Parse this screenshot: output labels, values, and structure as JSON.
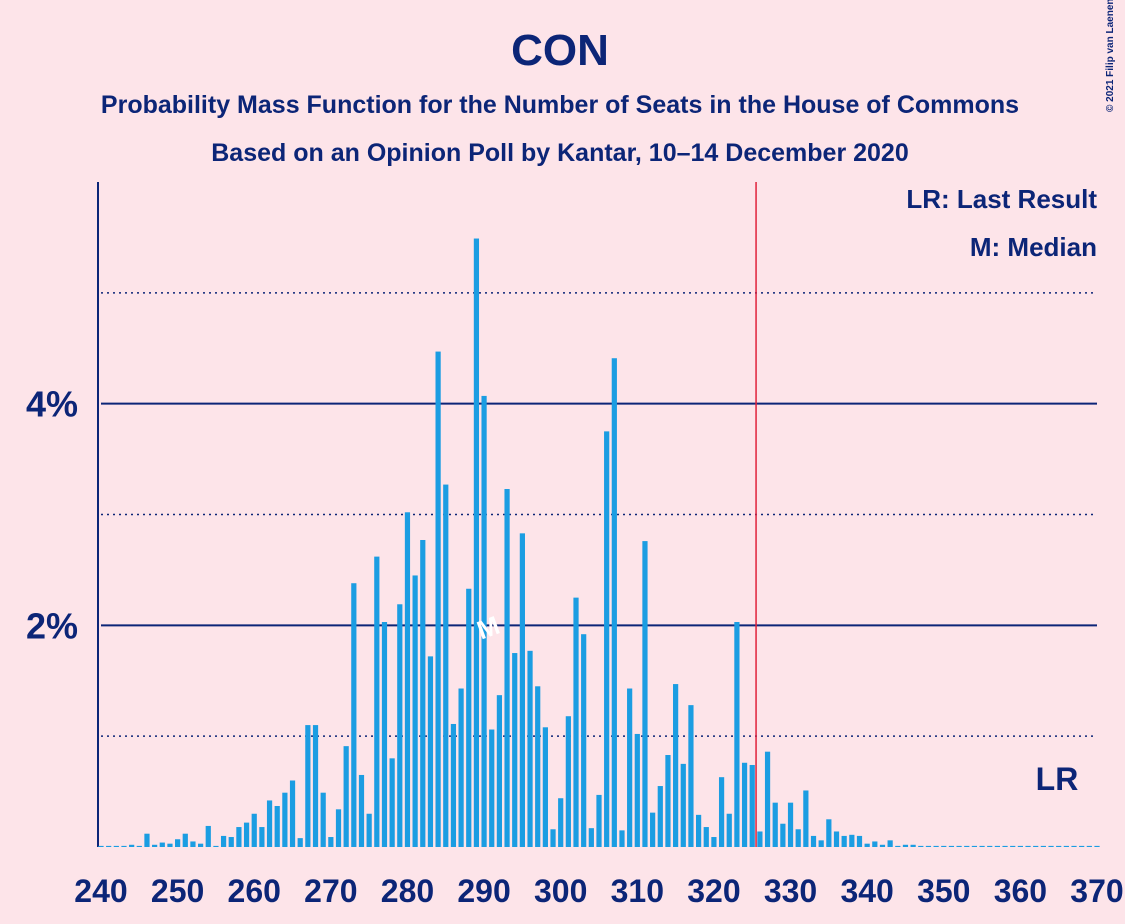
{
  "chart_data": {
    "type": "bar",
    "title": "CON",
    "subtitle": "Probability Mass Function for the Number of Seats in the House of Commons",
    "subtitle2": "Based on an Opinion Poll by Kantar, 10–14 December 2020",
    "credit": "© 2021 Filip van Laenen",
    "legend": [
      "LR: Last Result",
      "M: Median"
    ],
    "last_result": {
      "x": 326,
      "label": "LR"
    },
    "median": {
      "x": 290,
      "label": "M"
    },
    "color": "#1b9de2",
    "line_color": "#e0213a",
    "x": [
      240,
      241,
      242,
      243,
      244,
      245,
      246,
      247,
      248,
      249,
      250,
      251,
      252,
      253,
      254,
      255,
      256,
      257,
      258,
      259,
      260,
      261,
      262,
      263,
      264,
      265,
      266,
      267,
      268,
      269,
      270,
      271,
      272,
      273,
      274,
      275,
      276,
      277,
      278,
      279,
      280,
      281,
      282,
      283,
      284,
      285,
      286,
      287,
      288,
      289,
      290,
      291,
      292,
      293,
      294,
      295,
      296,
      297,
      298,
      299,
      300,
      301,
      302,
      303,
      304,
      305,
      306,
      307,
      308,
      309,
      310,
      311,
      312,
      313,
      314,
      315,
      316,
      317,
      318,
      319,
      320,
      321,
      322,
      323,
      324,
      325,
      326,
      327,
      328,
      329,
      330,
      331,
      332,
      333,
      334,
      335,
      336,
      337,
      338,
      339,
      340,
      341,
      342,
      343,
      344,
      345,
      346,
      347,
      348,
      349,
      350,
      351,
      352,
      353,
      354,
      355,
      356,
      357,
      358,
      359,
      360,
      361,
      362,
      363,
      364,
      365,
      366,
      367,
      368,
      369,
      370
    ],
    "values": [
      0.01,
      0.01,
      0.01,
      0.01,
      0.02,
      0.01,
      0.12,
      0.02,
      0.04,
      0.03,
      0.07,
      0.12,
      0.05,
      0.03,
      0.19,
      0.01,
      0.1,
      0.09,
      0.18,
      0.22,
      0.3,
      0.18,
      0.42,
      0.37,
      0.49,
      0.6,
      0.08,
      1.1,
      1.1,
      0.49,
      0.09,
      0.34,
      0.91,
      2.38,
      0.65,
      0.3,
      2.62,
      2.03,
      0.8,
      2.19,
      3.02,
      2.45,
      2.77,
      1.72,
      4.47,
      3.27,
      1.11,
      1.43,
      2.33,
      5.49,
      4.07,
      1.06,
      1.37,
      3.23,
      1.75,
      2.83,
      1.77,
      1.45,
      1.08,
      0.16,
      0.44,
      1.18,
      2.25,
      1.92,
      0.17,
      0.47,
      3.75,
      4.41,
      0.15,
      1.43,
      1.02,
      2.76,
      0.31,
      0.55,
      0.83,
      1.47,
      0.75,
      1.28,
      0.29,
      0.18,
      0.09,
      0.63,
      0.3,
      2.03,
      0.76,
      0.74,
      0.14,
      0.86,
      0.4,
      0.21,
      0.4,
      0.16,
      0.51,
      0.1,
      0.06,
      0.25,
      0.14,
      0.1,
      0.11,
      0.1,
      0.03,
      0.05,
      0.02,
      0.06,
      0.01,
      0.02,
      0.02,
      0.01,
      0.01,
      0.01,
      0.01,
      0.01,
      0.01,
      0.01,
      0.01,
      0.01,
      0.01,
      0.01,
      0.01,
      0.01,
      0.01,
      0.01,
      0.01,
      0.01,
      0.01,
      0.01,
      0.01,
      0.01,
      0.01,
      0.01,
      0.01
    ],
    "xlim": [
      240,
      370
    ],
    "xticks": [
      240,
      250,
      260,
      270,
      280,
      290,
      300,
      310,
      320,
      330,
      340,
      350,
      360,
      370
    ],
    "ylim": [
      0,
      6
    ],
    "yticks": [
      {
        "value": 2,
        "label": "2%"
      },
      {
        "value": 4,
        "label": "4%"
      }
    ],
    "minor_yticks": [
      1,
      3,
      5
    ],
    "grid": true
  }
}
